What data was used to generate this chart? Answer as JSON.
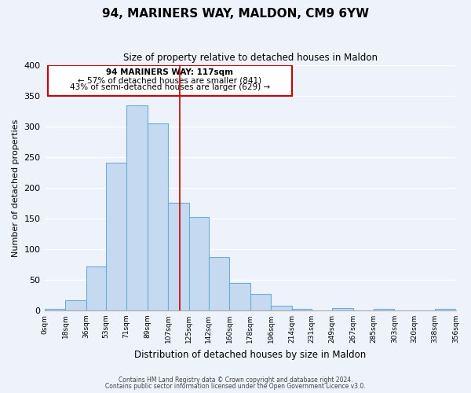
{
  "title": "94, MARINERS WAY, MALDON, CM9 6YW",
  "subtitle": "Size of property relative to detached houses in Maldon",
  "xlabel": "Distribution of detached houses by size in Maldon",
  "ylabel": "Number of detached properties",
  "bar_color": "#c5d9f0",
  "bar_edge_color": "#6baed6",
  "bg_color": "#eef2fb",
  "grid_color": "#ffffff",
  "annotation_box_color": "#cc0000",
  "property_line_color": "#cc0000",
  "bin_edges": [
    0,
    18,
    36,
    53,
    71,
    89,
    107,
    125,
    142,
    160,
    178,
    196,
    214,
    231,
    249,
    267,
    285,
    303,
    320,
    338,
    356
  ],
  "bin_labels": [
    "0sqm",
    "18sqm",
    "36sqm",
    "53sqm",
    "71sqm",
    "89sqm",
    "107sqm",
    "125sqm",
    "142sqm",
    "160sqm",
    "178sqm",
    "196sqm",
    "214sqm",
    "231sqm",
    "249sqm",
    "267sqm",
    "285sqm",
    "303sqm",
    "320sqm",
    "338sqm",
    "356sqm"
  ],
  "counts": [
    3,
    16,
    72,
    241,
    335,
    305,
    175,
    153,
    87,
    45,
    27,
    8,
    3,
    0,
    4,
    0,
    2,
    0,
    0,
    2
  ],
  "property_value": 117,
  "annotation_title": "94 MARINERS WAY: 117sqm",
  "annotation_line1": "← 57% of detached houses are smaller (841)",
  "annotation_line2": "43% of semi-detached houses are larger (629) →",
  "ylim": [
    0,
    400
  ],
  "yticks": [
    0,
    50,
    100,
    150,
    200,
    250,
    300,
    350,
    400
  ],
  "footer_line1": "Contains HM Land Registry data © Crown copyright and database right 2024.",
  "footer_line2": "Contains public sector information licensed under the Open Government Licence v3.0."
}
